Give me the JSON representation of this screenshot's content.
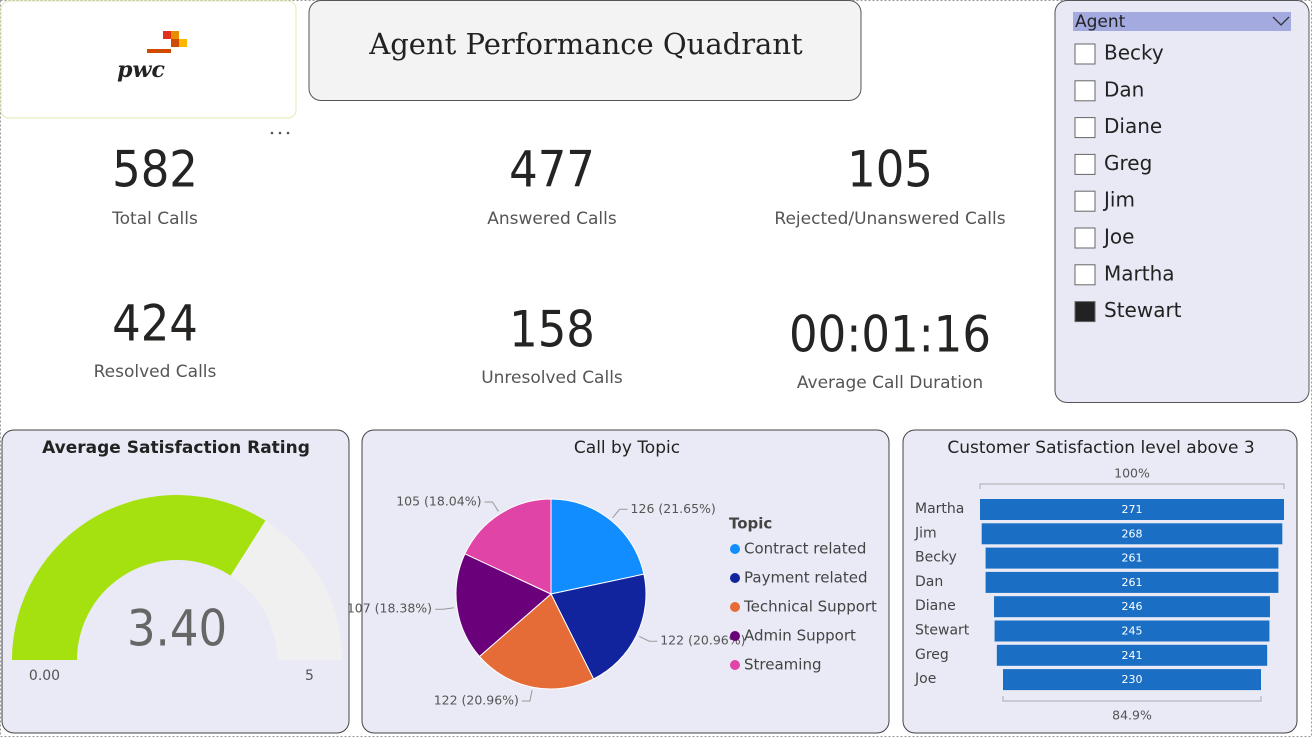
{
  "header": {
    "logo": "pwc",
    "title": "Agent Performance Quadrant"
  },
  "kpis": [
    {
      "value": 582,
      "label": "Total Calls"
    },
    {
      "value": 477,
      "label": "Answered Calls"
    },
    {
      "value": 105,
      "label": "Rejected/Unanswered Calls"
    },
    {
      "value": 424,
      "label": "Resolved Calls"
    },
    {
      "value": 158,
      "label": "Unresolved Calls"
    },
    {
      "value": "00:01:16",
      "label": "Average Call Duration"
    }
  ],
  "slicer": {
    "title": "Agent",
    "items": [
      "Becky",
      "Dan",
      "Diane",
      "Greg",
      "Jim",
      "Joe",
      "Martha",
      "Stewart"
    ],
    "selected": [
      false,
      false,
      false,
      false,
      false,
      false,
      false,
      true
    ]
  },
  "chart_data": [
    {
      "type": "gauge",
      "title": "Average Satisfaction Rating",
      "values": [
        3.4
      ],
      "value_labels": [
        "3.40"
      ],
      "ylim": [
        0,
        5
      ],
      "yticks": [
        {
          "value": 0,
          "label": "0.00"
        },
        5
      ],
      "color": "#a5e00f",
      "track_color": "#f0f0f0"
    },
    {
      "type": "pie",
      "title": "Call by Topic",
      "legend_title": "Topic",
      "categories": [
        "Contract related",
        "Payment related",
        "Technical Support",
        "Admin Support",
        "Streaming"
      ],
      "values": [
        126,
        122,
        122,
        107,
        105
      ],
      "value_labels": [
        "126 (21.65%)",
        "122 (20.96%)",
        "122 (20.96%)",
        "107 (18.38%)",
        "105 (18.04%)"
      ],
      "colors": [
        "#118dff",
        "#12239e",
        "#e66c37",
        "#6b007b",
        "#e044a7"
      ]
    },
    {
      "type": "funnel",
      "title": "Customer Satisfaction level above 3",
      "categories": [
        "Martha",
        "Jim",
        "Becky",
        "Dan",
        "Diane",
        "Stewart",
        "Greg",
        "Joe"
      ],
      "values": [
        271,
        268,
        261,
        261,
        246,
        245,
        241,
        230
      ],
      "top_label": "100%",
      "bottom_label": "84.9%",
      "color": "#1a6fc4"
    }
  ]
}
